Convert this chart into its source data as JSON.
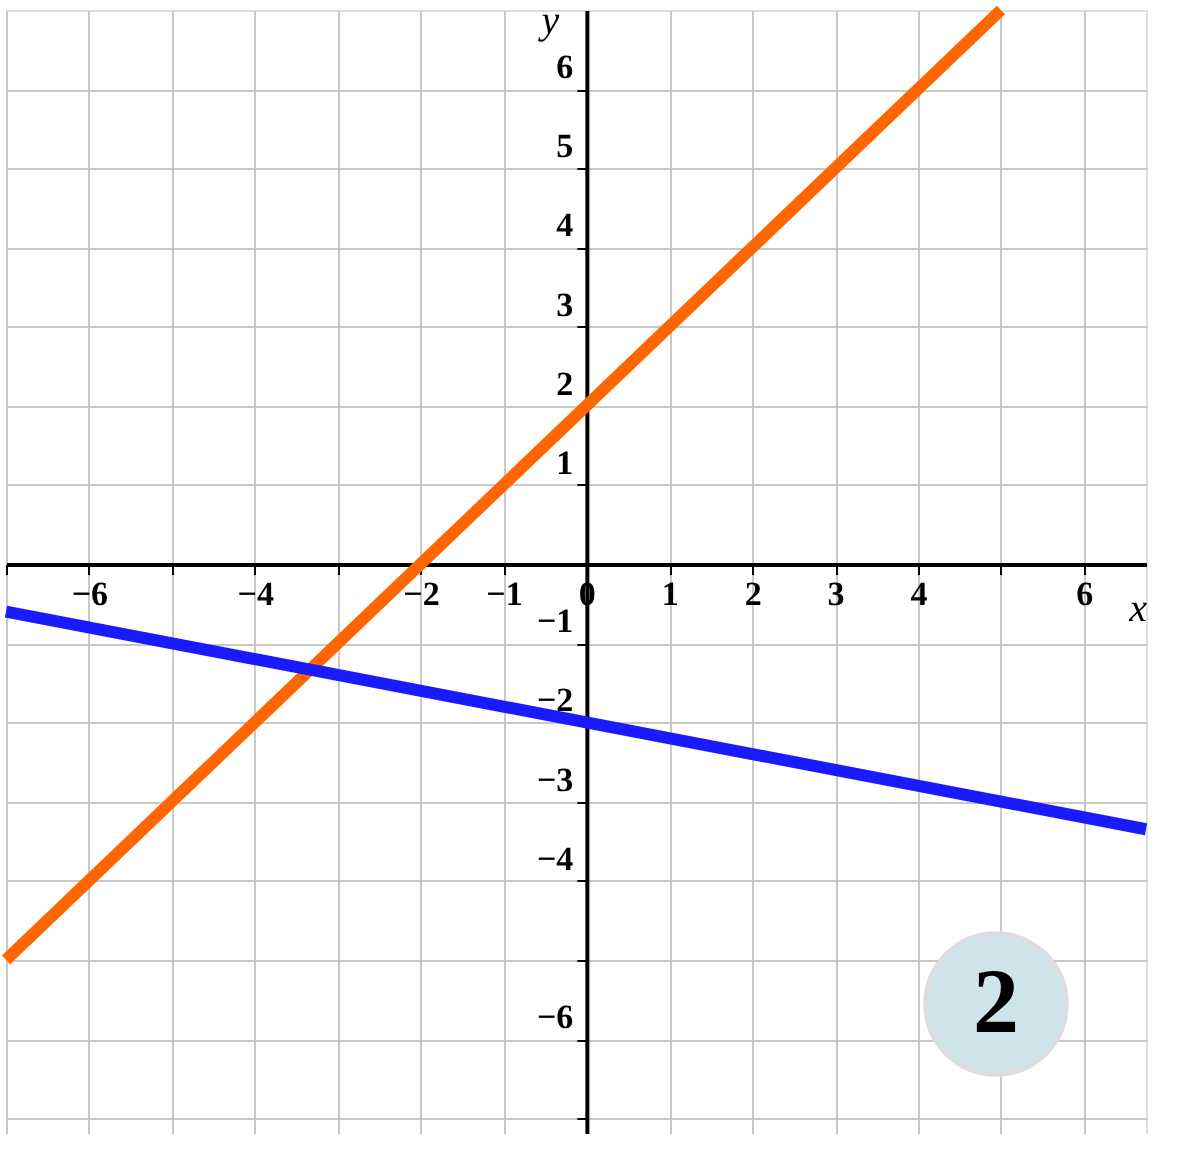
{
  "chart_data": {
    "type": "line",
    "xlabel": "x",
    "ylabel": "y",
    "xlim": [
      -7,
      6.75
    ],
    "ylim": [
      -7.2,
      7
    ],
    "xticks": [
      {
        "value": -7,
        "label": null
      },
      -6,
      {
        "value": -5,
        "label": null
      },
      -4,
      {
        "value": -3,
        "label": null
      },
      -2,
      -1,
      0,
      1,
      2,
      3,
      4,
      {
        "value": 5,
        "label": null
      },
      6
    ],
    "yticks": [
      {
        "value": -7,
        "label": null
      },
      -6,
      {
        "value": -5,
        "label": null
      },
      -4,
      -3,
      -2,
      -1,
      1,
      2,
      3,
      4,
      5,
      6
    ],
    "grid": true,
    "line_style": "solid",
    "marker": "none",
    "series": [
      {
        "color": "#ff6600",
        "x": [
          -7,
          5
        ],
        "values": [
          -5,
          7
        ]
      },
      {
        "color": "#1a1aff",
        "x": [
          -7,
          6.75
        ],
        "values": [
          -0.6,
          -3.35
        ]
      }
    ],
    "annotations": [
      "2"
    ]
  }
}
